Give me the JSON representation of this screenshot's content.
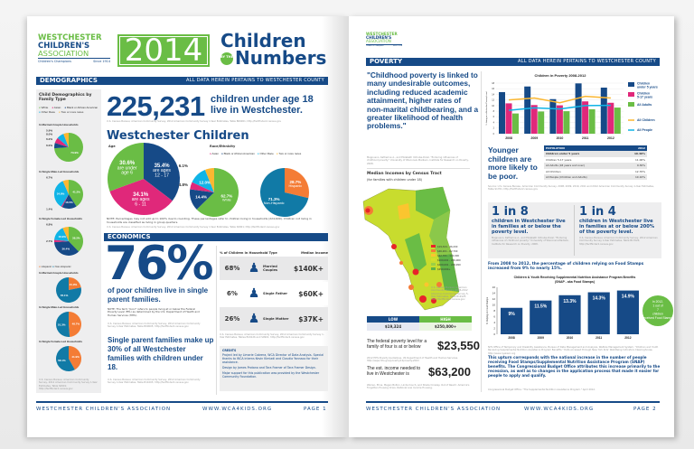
{
  "colors": {
    "navy": "#164a87",
    "green": "#6abd45",
    "pink": "#e0287a",
    "cyan": "#10b4e6",
    "yellow": "#fbb731",
    "orange": "#f47c35",
    "teal": "#117aa6"
  },
  "logo": {
    "line1": "WESTCHESTER",
    "line2": "CHILDREN'S",
    "line3": "ASSOCIATION",
    "tag_left": "Children's Champions",
    "tag_right": "Since 1914"
  },
  "masthead": {
    "year": "2014",
    "title1": "Children",
    "by_the": "BY THE",
    "title2": "Numbers"
  },
  "page1": {
    "section_bar": "DEMOGRAPHICS",
    "section_note": "ALL DATA HEREIN PERTAINS TO WESTCHESTER COUNTY",
    "sidebar": {
      "title": "Child Demographics by Family Type",
      "legend": [
        "White",
        "Asian",
        "Black or African American",
        "Other Race",
        "Two or more races"
      ],
      "race_pies": [
        {
          "label": "In Married-Couple Households",
          "values": [
            {
              "name": "White",
              "v": 73.9,
              "t": "73.9%"
            },
            {
              "name": "Black or African American",
              "v": 6.0,
              "t": "6.0%"
            },
            {
              "name": "Asian",
              "v": 6.2,
              "t": "6.2%"
            },
            {
              "name": "Other Race",
              "v": 8.0,
              "t": "8.0%"
            },
            {
              "name": "Two or more races",
              "v": 5.9,
              "t": "5.9%"
            }
          ]
        },
        {
          "label": "In Single Male-Led Households",
          "values": [
            {
              "name": "White",
              "v": 41.2,
              "t": "41.2%"
            },
            {
              "name": "Black or African American",
              "v": 16.5,
              "t": "16.5%"
            },
            {
              "name": "Asian",
              "v": 1.4,
              "t": "1.4%"
            },
            {
              "name": "Other Race",
              "v": 34.8,
              "t": "34.8%"
            },
            {
              "name": "Two or more races",
              "v": 6.7,
              "t": "6.7%"
            }
          ]
        },
        {
          "label": "In Single Female-Led Households",
          "values": [
            {
              "name": "White",
              "v": 38.2,
              "t": "38.2%"
            },
            {
              "name": "Black or African American",
              "v": 36.4,
              "t": "36.4%"
            },
            {
              "name": "Asian",
              "v": 2.7,
              "t": "2.7%"
            },
            {
              "name": "Other Race",
              "v": 16.9,
              "t": "16.9%"
            },
            {
              "name": "Two or more races",
              "v": 6.8,
              "t": "6.8%"
            }
          ]
        }
      ],
      "legend2": [
        "Hispanic",
        "Non-Hispanic"
      ],
      "hisp_pies": [
        {
          "label": "In Married-Couple Households",
          "values": [
            {
              "name": "Hispanic",
              "v": 21.9,
              "t": "21.9%"
            },
            {
              "name": "Non-Hispanic",
              "v": 78.1,
              "t": "78.1%"
            }
          ]
        },
        {
          "label": "In Single Male-Led Households",
          "values": [
            {
              "name": "Hispanic",
              "v": 48.7,
              "t": "48.7%"
            },
            {
              "name": "Non-Hispanic",
              "v": 51.3,
              "t": "51.3%"
            }
          ]
        },
        {
          "label": "In Single Female-Led Households",
          "values": [
            {
              "name": "Hispanic",
              "v": 41.9,
              "t": "41.9%"
            },
            {
              "name": "Non-Hispanic",
              "v": 58.1,
              "t": "58.1%"
            }
          ]
        }
      ],
      "source": "U.S. Census Bureau; American Community Survey, 2012 American Community Survey 1-Year Estimates, Table S0901; http://factfinder2.census.gov"
    },
    "headline_number": "225,231",
    "headline_text": "children under age 18 live in Westchester.",
    "headline_source": "U.S. Census Bureau; American Community Survey, 2012 American Community Survey 1-Year Estimates, Table B09001; http://factfinder2.census.gov",
    "wc_title": "Westchester Children",
    "age_title": "Age",
    "age_pie": [
      {
        "v": 35.4,
        "t": "35.4%",
        "s": "are ages 12 - 17"
      },
      {
        "v": 34.1,
        "t": "34.1%",
        "s": "are ages 6 - 11"
      },
      {
        "v": 30.6,
        "t": "30.6%",
        "s": "are under age 6"
      }
    ],
    "race_title": "Race/Ethnicity",
    "race_legend": [
      "Asian",
      "Black or African American",
      "Other Race",
      "Two or more races"
    ],
    "race_pie": [
      {
        "name": "White",
        "v": 62.7,
        "t": "62.7%",
        "s": "White"
      },
      {
        "name": "Black or African American",
        "v": 14.4,
        "t": "14.4%"
      },
      {
        "name": "Asian",
        "v": 4.8,
        "t": "4.8%"
      },
      {
        "name": "Other Race",
        "v": 12.0,
        "t": "12.0%"
      },
      {
        "name": "Two or more races",
        "v": 6.1,
        "t": "6.1%"
      }
    ],
    "hisp_pie": [
      {
        "name": "Hispanic",
        "v": 28.7,
        "t": "28.7%",
        "s": "Hispanic"
      },
      {
        "name": "Non-Hispanic",
        "v": 71.3,
        "t": "71.3%",
        "s": "Non-Hispanic"
      }
    ],
    "note": "NOTE: Percentages may not add up to 100% due to rounding. These percentages refer to children living in households (224,609). Children not living in households are classified as living in group quarters.",
    "note_source": "U.S. Census Bureau; American Community Survey, 2012 American Community Survey 1-Year Estimates, Table S0901; http://factfinder2.census.gov",
    "econ_bar": "ECONOMICS",
    "big_pct": "76%",
    "big_pct_text": "of poor children live in single parent families.",
    "poor_note": "NOTE: The term \"poor\" refers to people living at or below the Federal Poverty Level (FPL) as determined by the U.S. Department of Health and Human Services (HHS).",
    "poor_source": "U.S. Census Bureau; American Community Survey, 2012 American Community Survey 1-Year Estimates, Table B09005; http://factfinder2.census.gov",
    "single_text": "Single parent families make up 30% of all Westchester families with children under 18.",
    "single_source": "U.S. Census Bureau; American Community Survey, 2012 American Community Survey 1-Year Estimates, Table B11003; http://factfinder2.census.gov",
    "household": {
      "col1": "% of Children in Household Type",
      "col2": "Median Income",
      "rows": [
        {
          "pct": "68%",
          "type": "Married Couples",
          "income": "$140K+"
        },
        {
          "pct": "6%",
          "type": "Single Father",
          "income": "$60K+"
        },
        {
          "pct": "26%",
          "type": "Single Mother",
          "income": "$37K+"
        }
      ],
      "source": "U.S. Census Bureau; American Community Survey, 2012 American Community Survey 1-Year Estimates, Tables B19126 and S0901; http://factfinder2.census.gov"
    },
    "credits": {
      "title": "CREDITS",
      "p1": "Project led by Limarie Cabrera, WCA Director of Data Analysis. Special thanks to WCA interns Kevin Kimiadi and Claudia Yannaco for their assistance.",
      "p2": "Design by James Protano and Tara Framer of Tara Framer Design.",
      "p3": "Major support for this publication was provided by the Westchester Community Foundation."
    },
    "footer": {
      "org": "WESTCHESTER CHILDREN'S ASSOCIATION",
      "url": "WWW.WCA4KIDS.ORG",
      "page": "PAGE 1"
    }
  },
  "page2": {
    "section_bar": "POVERTY",
    "section_note": "ALL DATA HEREIN PERTAINS TO WESTCHESTER COUNTY",
    "quote": "\"Childhood poverty is linked to many undesirable outcomes, including reduced academic attainment, higher rates of non-marital childbearing, and a greater likelihood of health problems.\"",
    "quote_source": "Magnuson, Katherine A., and Elizabeth Votruba-Drzal. \"Enduring influences of childhood poverty.\" University of Wisconsin-Madison, Institute for Research on Poverty, 2008.",
    "map": {
      "title": "Median Incomes by Census Tract",
      "subtitle": "(for families with children under 18)",
      "legend": [
        {
          "t": "$19,324 - 46,200",
          "c": "#e8242a"
        },
        {
          "t": "$46,201 - 62,700",
          "c": "#f47c35"
        },
        {
          "t": "$62,701 - 100,000",
          "c": "#fbc52f"
        },
        {
          "t": "$100,001 - 200,000",
          "c": "#d3df2b"
        },
        {
          "t": "$200,001 - 249,999",
          "c": "#9ccf45"
        },
        {
          "t": "$250,000+",
          "c": "#5fb347"
        }
      ],
      "source": "U.S. Census Bureau; American Community Survey, 2008-2012 American Community Survey 5-Year Estimates, Table B19125; http://factfinder2.census.gov",
      "low_label": "LOW",
      "high_label": "HIGH",
      "low_value": "$19,324",
      "high_value": "$250,000+"
    },
    "fpl_text": "The federal poverty level for a family of four is at or below",
    "fpl_value": "$23,550",
    "fpl_source": "2012 HHS Poverty Guidelines, US Department of Health and Human Services. http://aspe.hhs.gov/poverty/12poverty.shtml",
    "est_text": "The est. income needed to live in Westchester is",
    "est_value": "$63,200",
    "est_source": "Warren, Elina, Megan Bolton, Linda Couch, and Sheila Crowley. Out of Reach: America's Forgotten Housing Crisis. National Low Income Housing.",
    "younger": "Younger children are more likely to be poor.",
    "table": {
      "headers": [
        "POPULATION",
        "2012"
      ],
      "rows": [
        [
          "Children under 5 years",
          "16.40%"
        ],
        [
          "Children 5-17 years",
          "11.00%"
        ],
        [
          "All Adults (18 years and over)",
          "9.30%"
        ],
        [
          "All Children",
          "12.70%"
        ],
        [
          "All People (Children and Adults)",
          "10.10%"
        ]
      ],
      "source": "Source: U.S. Census Bureau, American Community Survey, 2008, 2009, 2010, 2011 and 2012 American Community Survey 1-Year Estimates, Table S1701; http://factfinder2.census.gov"
    },
    "stat1": {
      "big": "1 in 8",
      "text": "children in Westchester live in families at or below the poverty level.",
      "source": "Magnuson, Katherine A., and Elizabeth Votruba-Drzal. \"Enduring influences of childhood poverty.\" University of Wisconsin-Madison, Institute for Research on Poverty, 2008."
    },
    "stat2": {
      "big": "1 in 4",
      "text": "children in Westchester live in families at or below 200% of the poverty level.",
      "source": "U.S. Census Bureau; American Community Survey, 2012 American Community Survey 1-Year Estimates, Table B17024; http://factfinder2.census.gov"
    },
    "snap_intro": "From 2008 to 2012, the percentage of children relying on Food Stamps increased from 9% to nearly 15%.",
    "snap_bubble": "In 2012, 1 out of 7 children received Food Stamps",
    "snap_source": "NYS Office of Temporary and Disability Assistance, Bureau of Data Management and Analysis, Welfare Management System. \"Children and Youth Receiving Supplemental Nutrition Assistance Program Benefits.\" Data accessed through New York Kids' Well-Being Indicators Clearinghouse, http://www.nyskwic.org",
    "upturn": "This upturn corresponds with the national increase in the number of people receiving Food Stamps/Supplemental Nutrition Assistance Program (SNAP) benefits. The Congressional Budget Office attributes this increase primarily to the recession, as well as to changes in the application process that made it easier for people to apply and qualify.",
    "upturn_source": "Congressional Budget Office. \"The Supplemental Nutrition Assistance Program.\" April 2012.",
    "footer": {
      "org": "WESTCHESTER CHILDREN'S ASSOCIATION",
      "url": "WWW.WCA4KIDS.ORG",
      "page": "PAGE 2"
    }
  },
  "chart_data": [
    {
      "type": "bar",
      "title": "Children in Poverty 2008-2012",
      "ylabel": "% Living at or Below the Poverty Level",
      "ylim": [
        0,
        18
      ],
      "yticks": [
        0,
        2,
        4,
        6,
        8,
        10,
        12,
        14,
        16,
        18
      ],
      "categories": [
        "2008",
        "2009",
        "2010",
        "2011",
        "2012"
      ],
      "series": [
        {
          "name": "Children under 5 years",
          "kind": "bar",
          "color": "#164a87",
          "values": [
            14.8,
            16.8,
            12.3,
            17.9,
            16.4
          ]
        },
        {
          "name": "Children 5-17 years",
          "kind": "bar",
          "color": "#e0287a",
          "values": [
            10.8,
            10.2,
            10.1,
            11.5,
            11.0
          ]
        },
        {
          "name": "All Adults",
          "kind": "bar",
          "color": "#6abd45",
          "values": [
            7.2,
            7.9,
            8.0,
            8.7,
            9.3
          ]
        },
        {
          "name": "All Children",
          "kind": "line",
          "color": "#fbb731",
          "values": [
            12.0,
            12.7,
            11.0,
            13.3,
            12.7
          ]
        },
        {
          "name": "All People",
          "kind": "line",
          "color": "#10b4e6",
          "values": [
            8.3,
            9.2,
            8.8,
            10.0,
            10.1
          ]
        }
      ],
      "legend": "right",
      "grid": true
    },
    {
      "type": "bar",
      "title": "Children & Youth Receiving Supplemental Nutrition Assistance Program Benefits",
      "subtitle": "(SNAP - aka Food Stamps)",
      "ylabel": "% Relying on Food Stamps",
      "ylim": [
        0,
        16
      ],
      "yticks": [
        0,
        2,
        4,
        6,
        8,
        10,
        12,
        14,
        16
      ],
      "categories": [
        "2008",
        "2009",
        "2010",
        "2011",
        "2012"
      ],
      "values": [
        9,
        11.5,
        13.3,
        14.3,
        14.9
      ],
      "labels": [
        "9%",
        "11.5%",
        "13.3%",
        "14.3%",
        "14.9%"
      ],
      "color": "#164a87",
      "grid": false
    }
  ]
}
